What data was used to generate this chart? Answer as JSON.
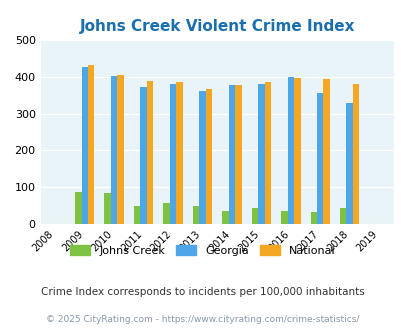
{
  "title": "Johns Creek Violent Crime Index",
  "title_color": "#1a6fad",
  "years": [
    2008,
    2009,
    2010,
    2011,
    2012,
    2013,
    2014,
    2015,
    2016,
    2017,
    2018,
    2019
  ],
  "data_years": [
    2009,
    2010,
    2011,
    2012,
    2013,
    2014,
    2015,
    2016,
    2017,
    2018
  ],
  "johns_creek": [
    88,
    85,
    50,
    58,
    51,
    37,
    44,
    37,
    34,
    44
  ],
  "georgia": [
    425,
    402,
    372,
    381,
    360,
    377,
    381,
    400,
    355,
    328
  ],
  "national": [
    431,
    405,
    387,
    386,
    366,
    378,
    384,
    397,
    394,
    379
  ],
  "color_jc": "#7dc242",
  "color_ga": "#4da6e8",
  "color_na": "#f5a623",
  "ylim": [
    0,
    500
  ],
  "yticks": [
    0,
    100,
    200,
    300,
    400,
    500
  ],
  "bg_color": "#e8f4f8",
  "grid_color": "#ffffff",
  "note": "Crime Index corresponds to incidents per 100,000 inhabitants",
  "note_color": "#333333",
  "copyright": "© 2025 CityRating.com - https://www.cityrating.com/crime-statistics/",
  "copyright_color": "#8899aa"
}
